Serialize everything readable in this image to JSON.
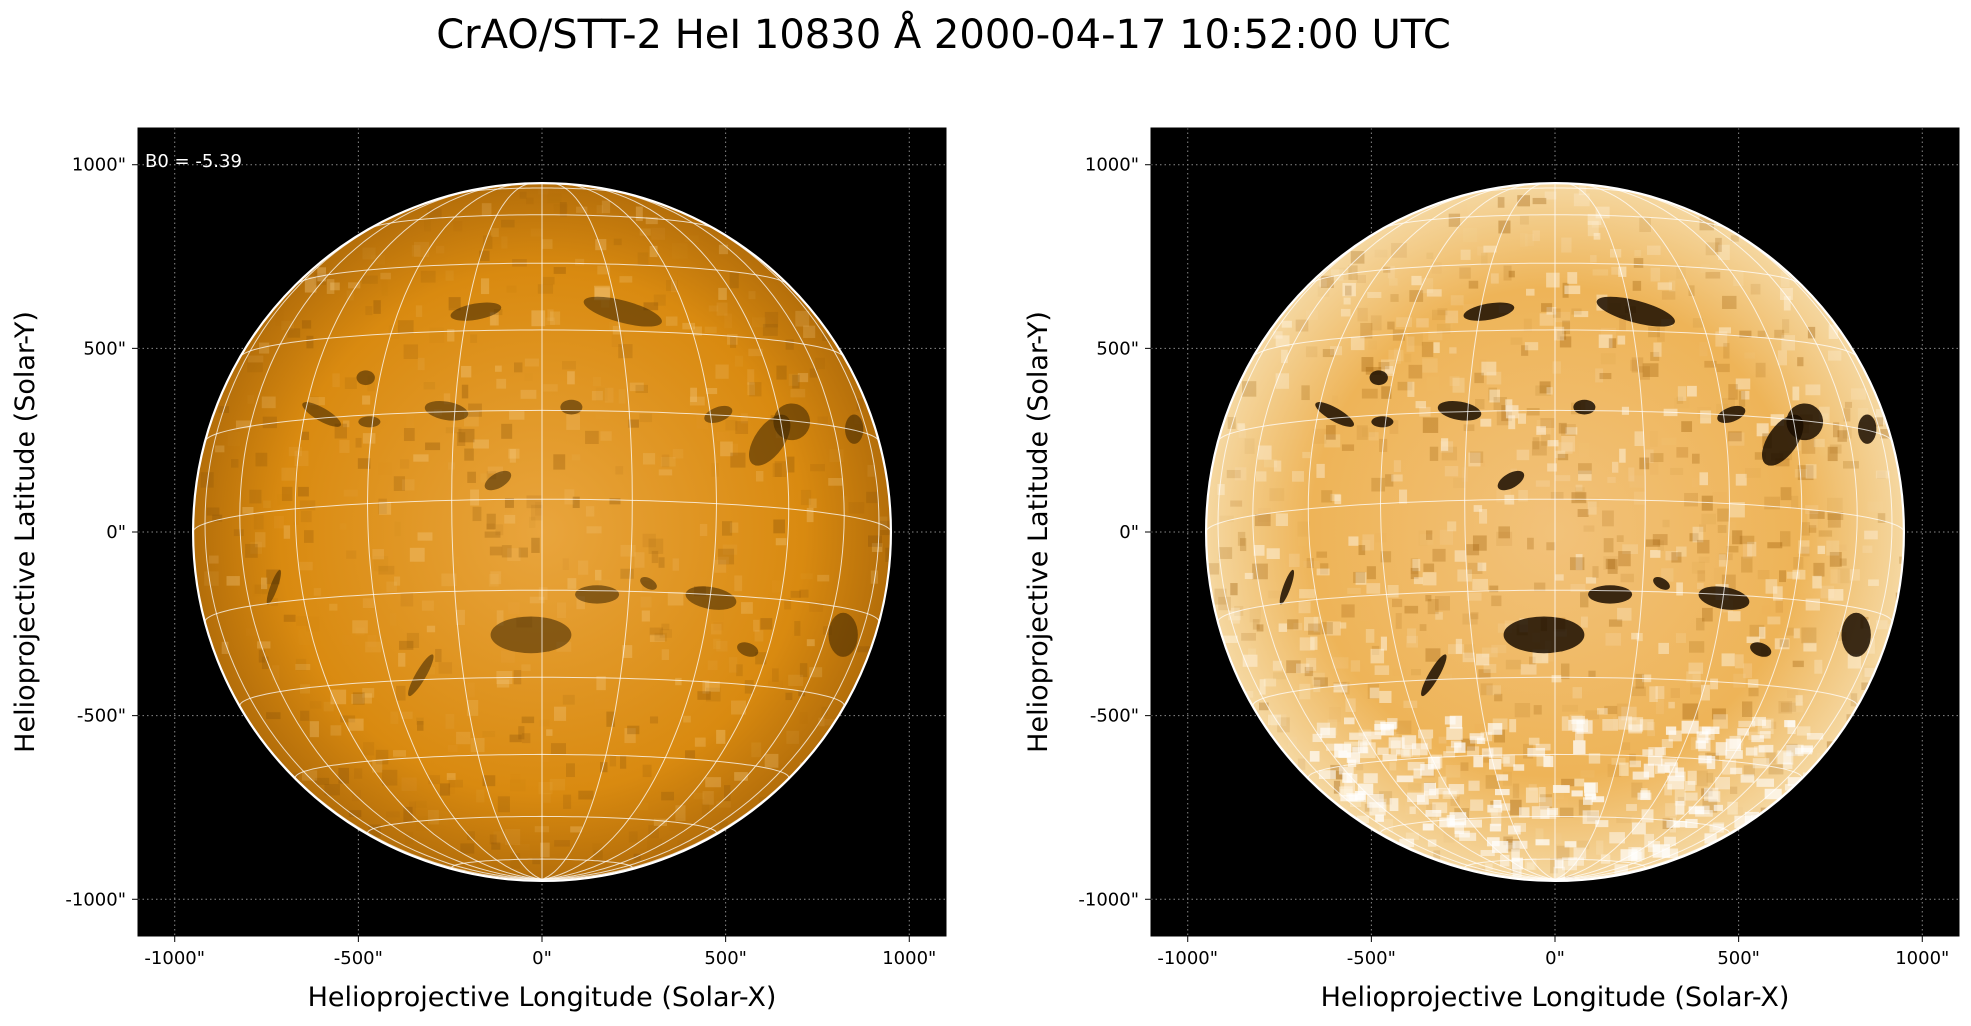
{
  "title": "CrAO/STT-2 HeI 10830 Å 2000-04-17 10:52:00 UTC",
  "panels": [
    {
      "id": "left",
      "annotation": "B0 = -5.39",
      "xlabel": "Helioprojective Longitude (Solar-X)",
      "ylabel": "Helioprojective Latitude (Solar-Y)",
      "xticks": [
        "-1000\"",
        "-500\"",
        "0\"",
        "500\"",
        "1000\""
      ],
      "yticks": [
        "1000\"",
        "500\"",
        "0\"",
        "-500\"",
        "-1000\""
      ],
      "contrast": "normal"
    },
    {
      "id": "right",
      "annotation": "",
      "xlabel": "Helioprojective Longitude (Solar-X)",
      "ylabel": "Helioprojective Latitude (Solar-Y)",
      "xticks": [
        "-1000\"",
        "-500\"",
        "0\"",
        "500\"",
        "1000\""
      ],
      "yticks": [
        "1000\"",
        "500\"",
        "0\"",
        "-500\"",
        "-1000\""
      ],
      "contrast": "enhanced"
    }
  ],
  "image": {
    "colormap": "orange-gold",
    "disk_color": "#d98a10",
    "background_color": "#000000",
    "grid_color": "#ffffff",
    "limb_color": "#ffffff",
    "x_range_arcsec": [
      -1100,
      1100
    ],
    "y_range_arcsec": [
      -1100,
      1100
    ],
    "disk_radius_arcsec": 950,
    "b0_deg": -5.39
  }
}
